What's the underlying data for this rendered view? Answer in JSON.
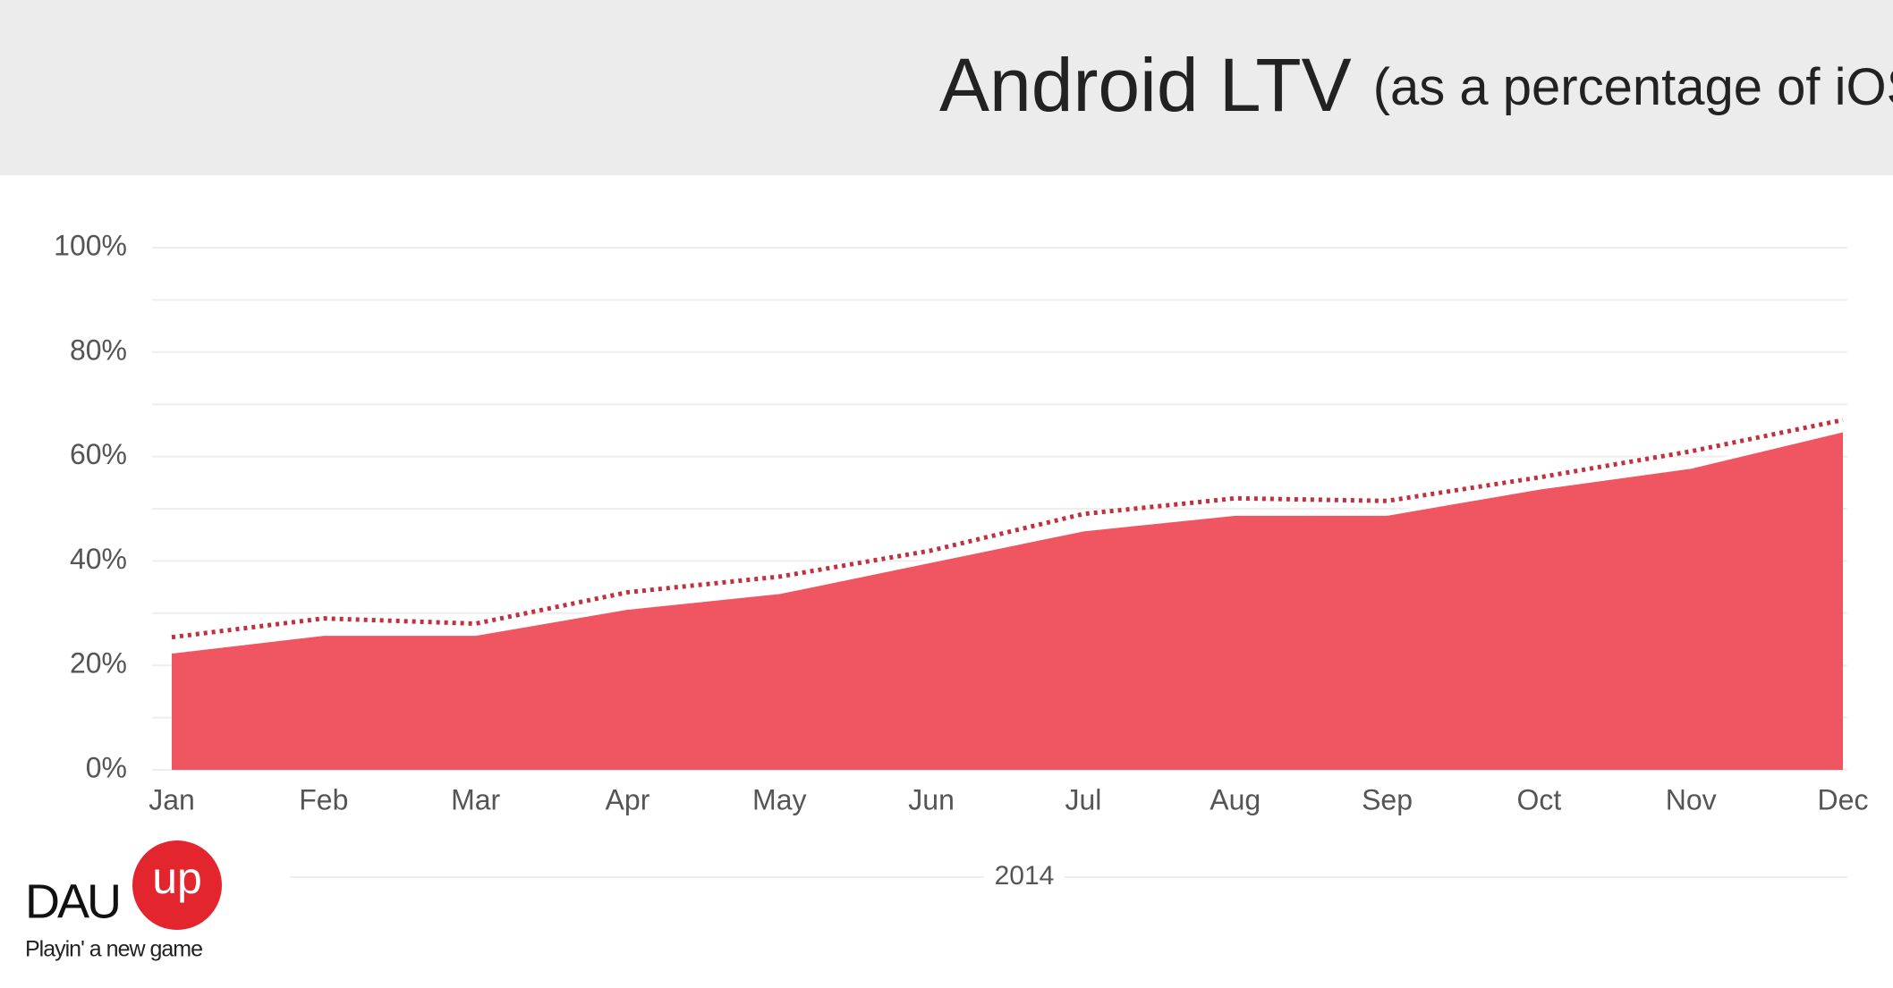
{
  "chart_data": {
    "type": "area",
    "title": "Android LTV",
    "subtitle": "(as a percentage of iOS LTV)",
    "x_label": "2014",
    "categories": [
      "Jan",
      "Feb",
      "Mar",
      "Apr",
      "May",
      "Jun",
      "Jul",
      "Aug",
      "Sep",
      "Oct",
      "Nov",
      "Dec"
    ],
    "series": [
      {
        "color": "#f05562",
        "style": "area",
        "values": [
          22.6,
          26,
          26,
          31,
          34,
          40,
          46,
          49,
          49,
          54,
          58,
          65
        ]
      },
      {
        "color": "#c0303d",
        "style": "dotted",
        "values": [
          25.4,
          29,
          28,
          34,
          37,
          42,
          49,
          52,
          51.5,
          56,
          61,
          67
        ]
      }
    ],
    "ylim": [
      0,
      100
    ],
    "yticks": [
      {
        "value": 0,
        "label": "0%"
      },
      {
        "value": 20,
        "label": "20%"
      },
      {
        "value": 40,
        "label": "40%"
      },
      {
        "value": 60,
        "label": "60%"
      },
      {
        "value": 80,
        "label": "80%"
      },
      {
        "value": 100,
        "label": "100%"
      }
    ],
    "minor_grid": [
      10,
      30,
      50,
      70,
      90
    ],
    "grid": true
  },
  "logo": {
    "name_left": "DAU",
    "name_badge": "up",
    "tagline": "Playin' a new game"
  }
}
